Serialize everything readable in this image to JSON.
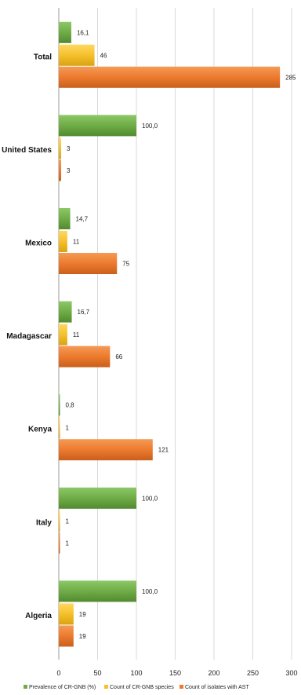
{
  "chart_data": {
    "type": "bar",
    "orientation": "horizontal",
    "categories": [
      "Total",
      "United States",
      "Mexico",
      "Madagascar",
      "Kenya",
      "Italy",
      "Algeria"
    ],
    "series": [
      {
        "name": "Prevalence of CR-GNB (%)",
        "color": "#6fac46",
        "values": [
          16.1,
          100.0,
          14.7,
          16.7,
          0.8,
          100.0,
          100.0
        ],
        "labels": [
          "16,1",
          "100,0",
          "14,7",
          "16,7",
          "0,8",
          "100,0",
          "100,0"
        ]
      },
      {
        "name": "Count of CR-GNB species",
        "color": "#f5c02c",
        "values": [
          46,
          3,
          11,
          11,
          1,
          1,
          19
        ],
        "labels": [
          "46",
          "3",
          "11",
          "11",
          "1",
          "1",
          "19"
        ]
      },
      {
        "name": "Count of isolates with AST",
        "color": "#ec7a2e",
        "values": [
          285,
          3,
          75,
          66,
          121,
          1,
          19
        ],
        "labels": [
          "285",
          "3",
          "75",
          "66",
          "121",
          "1",
          "19"
        ]
      }
    ],
    "xticks": [
      "0",
      "50",
      "100",
      "150",
      "200",
      "250",
      "300"
    ],
    "xlim": [
      0,
      300
    ],
    "grid": true,
    "legend_position": "bottom"
  }
}
